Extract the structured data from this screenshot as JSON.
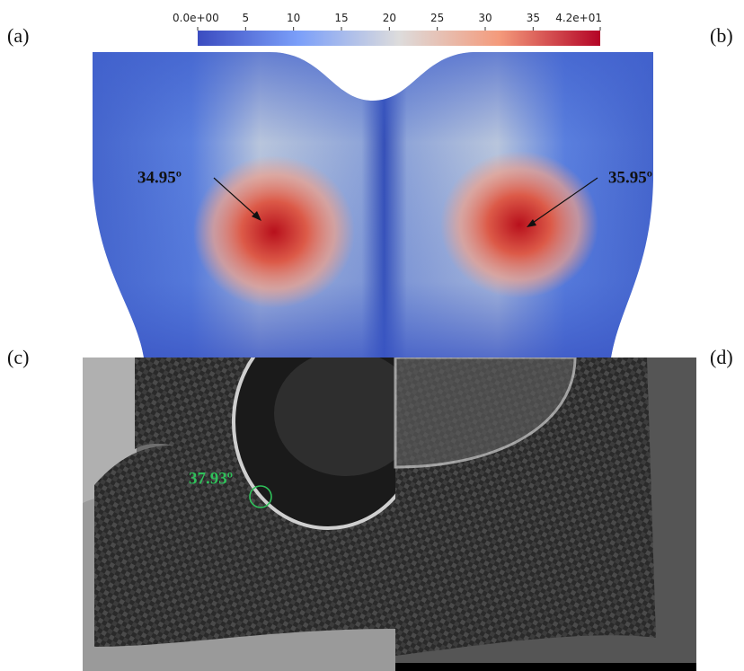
{
  "colorbar": {
    "range": [
      0,
      42
    ],
    "ticks": [
      {
        "value": 0,
        "label": "0.0e+00"
      },
      5,
      10,
      15,
      20,
      25,
      30,
      35,
      {
        "value": 42,
        "label": "4.2e+01"
      }
    ]
  },
  "panels": {
    "a": "(a)",
    "b": "(b)",
    "c": "(c)",
    "d": "(d)"
  },
  "annotations": {
    "left": "34.95º",
    "right": "35.95º",
    "measured": "37.93º"
  }
}
